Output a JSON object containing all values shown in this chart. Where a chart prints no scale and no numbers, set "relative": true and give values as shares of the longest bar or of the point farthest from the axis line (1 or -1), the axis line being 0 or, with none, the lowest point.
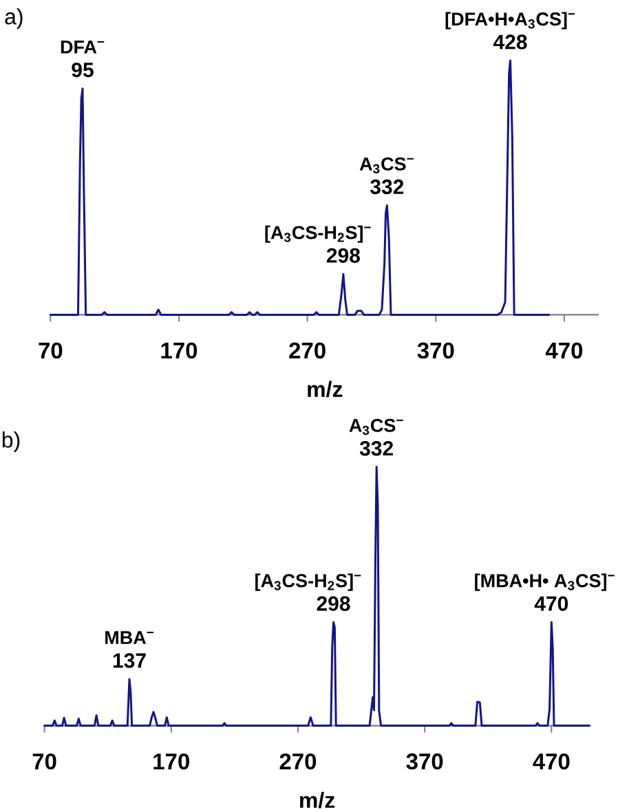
{
  "chart_data": [
    {
      "type": "line",
      "title": "a)",
      "xlabel": "m/z",
      "relative": true,
      "tick_labels": "x",
      "xlim": [
        70,
        497
      ],
      "xticks": [
        70,
        170,
        270,
        370,
        470
      ],
      "x": [
        70,
        91.5,
        93,
        94,
        95,
        96,
        97.5,
        110,
        112,
        114,
        152,
        154,
        156,
        209,
        211,
        213,
        223,
        225,
        227,
        229,
        231,
        233,
        275,
        277,
        279,
        294.5,
        296.5,
        298,
        299.5,
        301,
        307,
        309,
        312,
        314,
        326,
        328,
        330,
        331,
        332,
        333.5,
        335,
        418,
        421,
        424,
        425.5,
        427,
        428,
        429.5,
        431,
        458
      ],
      "series": [
        {
          "color": "#14148c",
          "values": [
            0,
            0,
            0.6,
            0.85,
            0.89,
            0.5,
            0,
            0,
            0.01,
            0,
            0,
            0.02,
            0,
            0,
            0.01,
            0,
            0,
            0.01,
            0,
            0,
            0.01,
            0,
            0,
            0.01,
            0,
            0,
            0.08,
            0.16,
            0.06,
            0,
            0,
            0.015,
            0.015,
            0,
            0,
            0.02,
            0.2,
            0.4,
            0.43,
            0.3,
            0,
            0,
            0.01,
            0.05,
            0.5,
            0.95,
            1,
            0.7,
            0,
            0
          ]
        }
      ],
      "annotations": [
        {
          "text": "DFA$^{−}$",
          "x": 95,
          "y": 0.89
        },
        {
          "text": "95",
          "x": 95,
          "y": 0.89
        },
        {
          "text": "[A$_{3}$CS-H$_{2}$S]$^{−}$",
          "x": 298,
          "y": 0.16
        },
        {
          "text": "298",
          "x": 298,
          "y": 0.16
        },
        {
          "text": "A$_{3}$CS$^{−}$",
          "x": 332,
          "y": 0.43
        },
        {
          "text": "332",
          "x": 332,
          "y": 0.43
        },
        {
          "text": "[DFA•H•A$_{3}$CS]$^{−}$",
          "x": 428,
          "y": 1
        },
        {
          "text": "428",
          "x": 428,
          "y": 1
        }
      ]
    },
    {
      "type": "line",
      "title": "b)",
      "xlabel": "m/z",
      "relative": true,
      "tick_labels": "x",
      "xlim": [
        70,
        500
      ],
      "xticks": [
        70,
        170,
        270,
        370,
        470
      ],
      "x": [
        70,
        76.5,
        78,
        79.5,
        84,
        85.5,
        87,
        95.5,
        97,
        98.5,
        109.5,
        111,
        112.5,
        122,
        123.5,
        125,
        135.5,
        137,
        138,
        139,
        153,
        154.5,
        156,
        157.5,
        159,
        165,
        166.5,
        168,
        210.5,
        212,
        213.5,
        278,
        280,
        282,
        296,
        297,
        298,
        299,
        300,
        326.5,
        329,
        330,
        331,
        332,
        333,
        334,
        335.5,
        389.5,
        391,
        392.5,
        410,
        411.5,
        413.5,
        415,
        457.5,
        459,
        460.5,
        467,
        468.5,
        470,
        471,
        472,
        500
      ],
      "series": [
        {
          "color": "#14148c",
          "values": [
            0,
            0,
            0.02,
            0,
            0,
            0.03,
            0,
            0,
            0.027,
            0,
            0,
            0.04,
            0,
            0,
            0.02,
            0,
            0,
            0.18,
            0.13,
            0,
            0,
            0.03,
            0.053,
            0.03,
            0,
            0,
            0.032,
            0,
            0,
            0.01,
            0,
            0,
            0.032,
            0,
            0,
            0.3,
            0.4,
            0.38,
            0,
            0,
            0.11,
            0.06,
            0.6,
            1,
            0.85,
            0.057,
            0,
            0,
            0.01,
            0,
            0,
            0.092,
            0.09,
            0,
            0,
            0.01,
            0,
            0,
            0.064,
            0.4,
            0.3,
            0,
            0
          ]
        }
      ],
      "annotations": [
        {
          "text": "MBA$^{−}$",
          "x": 137,
          "y": 0.18
        },
        {
          "text": "137",
          "x": 137,
          "y": 0.18
        },
        {
          "text": "[A$_{3}$CS-H$_{2}$S]$^{−}$",
          "x": 298,
          "y": 0.4
        },
        {
          "text": "298",
          "x": 298,
          "y": 0.4
        },
        {
          "text": "A$_{3}$CS$^{−}$",
          "x": 332,
          "y": 1
        },
        {
          "text": "332",
          "x": 332,
          "y": 1
        },
        {
          "text": "[MBA•H• A$_{3}$CS]$^{−}$",
          "x": 470,
          "y": 0.4
        },
        {
          "text": "470",
          "x": 470,
          "y": 0.4
        }
      ]
    }
  ]
}
